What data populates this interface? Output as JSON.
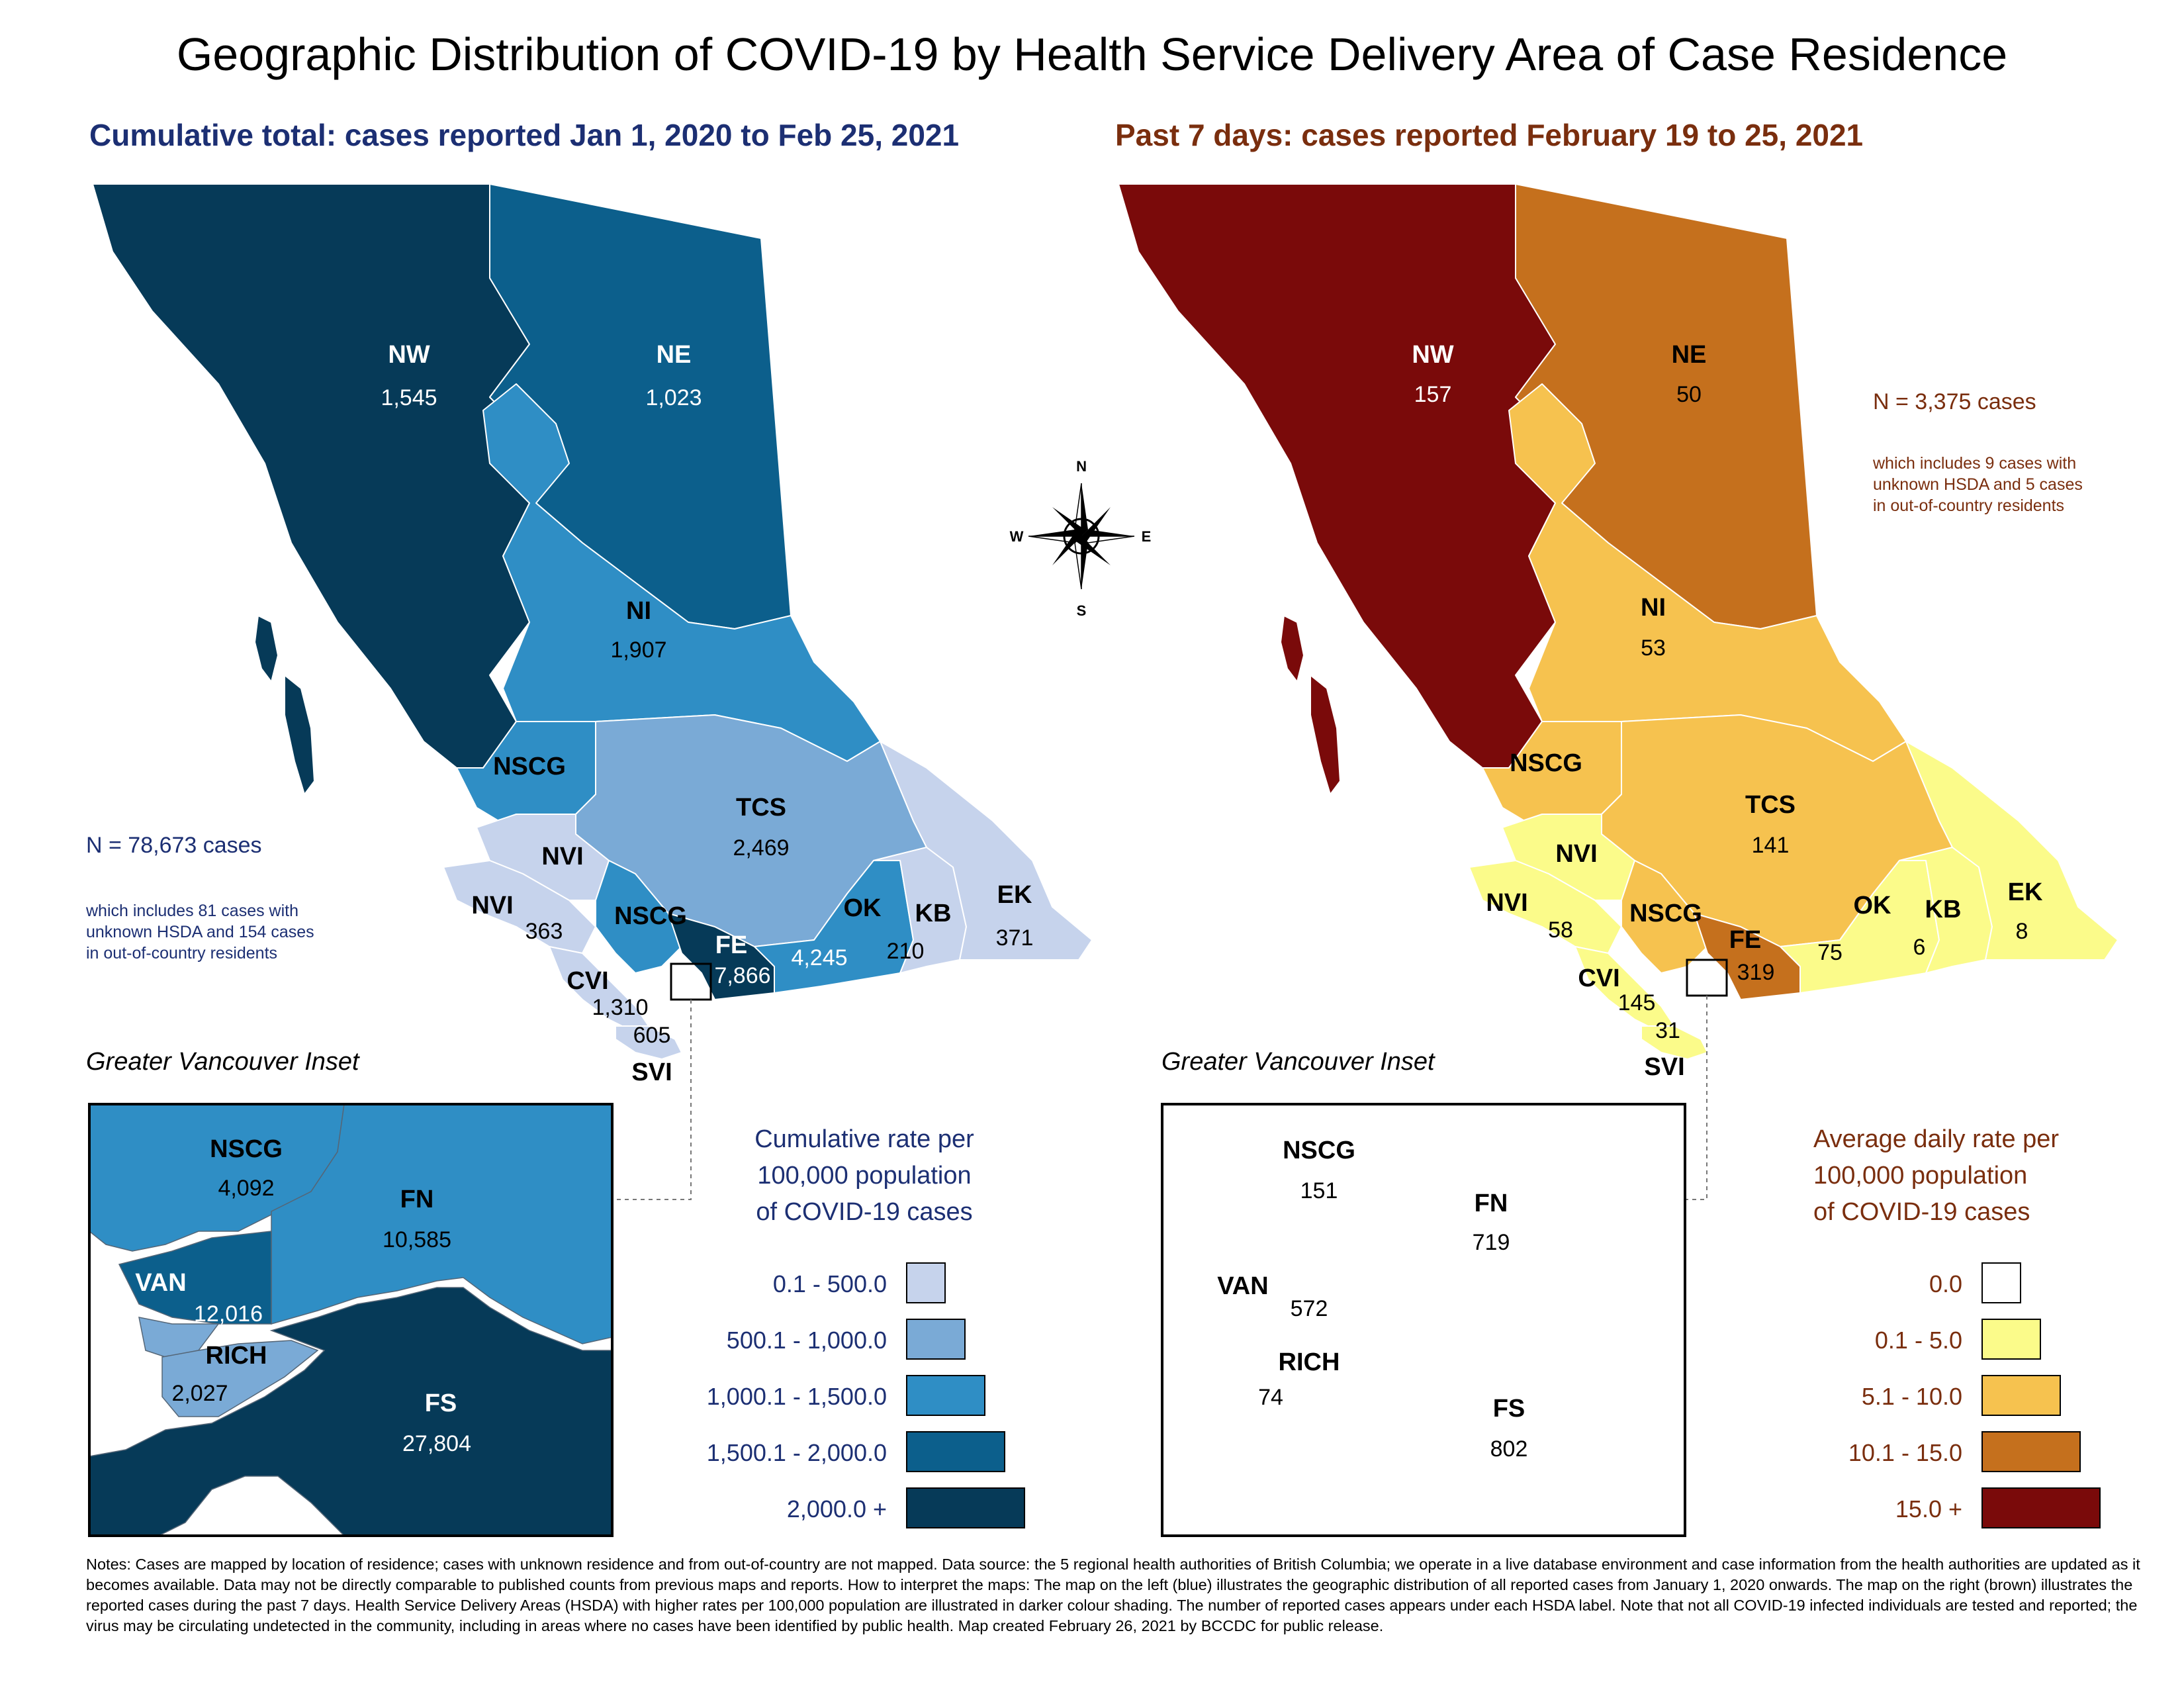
{
  "title": "Geographic Distribution of COVID-19 by Health Service Delivery Area of Case Residence",
  "left_map": {
    "subtitle": "Cumulative total: cases reported Jan 1, 2020 to Feb 25, 2021",
    "n_label": "N = 78,673 cases",
    "n_note": [
      "which includes 81 cases with",
      "unknown HSDA and 154 cases",
      "in out-of-country residents"
    ],
    "regions": {
      "NW": {
        "name": "NW",
        "value": "1,545"
      },
      "NE": {
        "name": "NE",
        "value": "1,023"
      },
      "NI": {
        "name": "NI",
        "value": "1,907"
      },
      "NSCG": {
        "name": "NSCG",
        "value": ""
      },
      "TCS": {
        "name": "TCS",
        "value": "2,469"
      },
      "NVI_upper": {
        "name": "NVI",
        "value": ""
      },
      "NVI_lower": {
        "name": "NVI",
        "value": "363"
      },
      "NSCG_south": {
        "name": "NSCG",
        "value": ""
      },
      "FE": {
        "name": "FE",
        "value": "7,866"
      },
      "OK": {
        "name": "OK",
        "value": "4,245"
      },
      "KB": {
        "name": "KB",
        "value": "210"
      },
      "EK": {
        "name": "EK",
        "value": "371"
      },
      "CVI": {
        "name": "CVI",
        "value": "1,310"
      },
      "SVI": {
        "name": "SVI",
        "value": "605"
      }
    },
    "inset": {
      "title": "Greater Vancouver Inset",
      "NSCG": {
        "name": "NSCG",
        "value": "4,092"
      },
      "FN": {
        "name": "FN",
        "value": "10,585"
      },
      "VAN": {
        "name": "VAN",
        "value": "12,016"
      },
      "RICH": {
        "name": "RICH",
        "value": "2,027"
      },
      "FS": {
        "name": "FS",
        "value": "27,804"
      }
    },
    "legend": {
      "title": [
        "Cumulative rate per",
        "100,000 population",
        "of COVID-19 cases"
      ],
      "items": [
        {
          "label": "0.1 - 500.0",
          "color": "#c6d3ec"
        },
        {
          "label": "500.1 - 1,000.0",
          "color": "#7aaad6"
        },
        {
          "label": "1,000.1 - 1,500.0",
          "color": "#2f8ec5"
        },
        {
          "label": "1,500.1 - 2,000.0",
          "color": "#0c5f8c"
        },
        {
          "label": "2,000.0 +",
          "color": "#063a58"
        }
      ],
      "text_color": "#1c2f73"
    }
  },
  "right_map": {
    "subtitle": "Past 7 days: cases reported February 19 to 25, 2021",
    "n_label": "N = 3,375 cases",
    "n_note": [
      "which includes 9 cases with",
      "unknown HSDA and 5 cases",
      "in out-of-country residents"
    ],
    "regions": {
      "NW": {
        "name": "NW",
        "value": "157"
      },
      "NE": {
        "name": "NE",
        "value": "50"
      },
      "NI": {
        "name": "NI",
        "value": "53"
      },
      "NSCG": {
        "name": "NSCG",
        "value": ""
      },
      "TCS": {
        "name": "TCS",
        "value": "141"
      },
      "NVI_upper": {
        "name": "NVI",
        "value": ""
      },
      "NVI_lower": {
        "name": "NVI",
        "value": "58"
      },
      "NSCG_south": {
        "name": "NSCG",
        "value": ""
      },
      "FE": {
        "name": "FE",
        "value": "319"
      },
      "OK": {
        "name": "OK",
        "value": "75"
      },
      "KB": {
        "name": "KB",
        "value": "6"
      },
      "EK": {
        "name": "EK",
        "value": "8"
      },
      "CVI": {
        "name": "CVI",
        "value": "145"
      },
      "SVI": {
        "name": "SVI",
        "value": "31"
      }
    },
    "inset": {
      "title": "Greater Vancouver Inset",
      "NSCG": {
        "name": "NSCG",
        "value": "151"
      },
      "FN": {
        "name": "FN",
        "value": "719"
      },
      "VAN": {
        "name": "VAN",
        "value": "572"
      },
      "RICH": {
        "name": "RICH",
        "value": "74"
      },
      "FS": {
        "name": "FS",
        "value": "802"
      }
    },
    "legend": {
      "title": [
        "Average daily rate per",
        "100,000 population",
        "of COVID-19 cases"
      ],
      "items": [
        {
          "label": "0.0",
          "color": "#ffffff"
        },
        {
          "label": "0.1 - 5.0",
          "color": "#fbfb8a"
        },
        {
          "label": "5.1 - 10.0",
          "color": "#f6c24f"
        },
        {
          "label": "10.1 - 15.0",
          "color": "#c5701d"
        },
        {
          "label": "15.0 +",
          "color": "#7a0a0a"
        }
      ],
      "text_color": "#7a2e0e"
    }
  },
  "compass": {
    "n": "N",
    "s": "S",
    "e": "E",
    "w": "W"
  },
  "colors": {
    "left_title": "#1c2f73",
    "right_title": "#7a2e0e",
    "blue_1": "#c6d3ec",
    "blue_2": "#7aaad6",
    "blue_3": "#2f8ec5",
    "blue_4": "#0c5f8c",
    "blue_5": "#063a58",
    "yellow_0": "#ffffff",
    "yellow_1": "#fbfb8a",
    "yellow_2": "#f6c24f",
    "yellow_3": "#c5701d",
    "yellow_4": "#7a0a0a"
  },
  "notes": "Notes: Cases are mapped by location of residence; cases with unknown residence and from out-of-country are not mapped. Data source: the 5 regional health authorities of British Columbia; we operate in a live database environment and case information from the health authorities are updated as it becomes available. Data may not be directly comparable to published counts from previous maps and reports. How to interpret the maps: The map on the left (blue) illustrates the geographic distribution of all reported cases from January 1, 2020 onwards. The map on the right (brown) illustrates the reported cases during the past 7 days. Health Service Delivery Areas (HSDA) with higher rates per 100,000 population are illustrated in darker colour shading. The number of reported cases appears under each HSDA label. Note that not all COVID-19 infected individuals are tested and reported; the virus may be circulating undetected in the community, including in areas where no cases have been identified by public health. Map created February 26, 2021 by BCCDC for public release."
}
